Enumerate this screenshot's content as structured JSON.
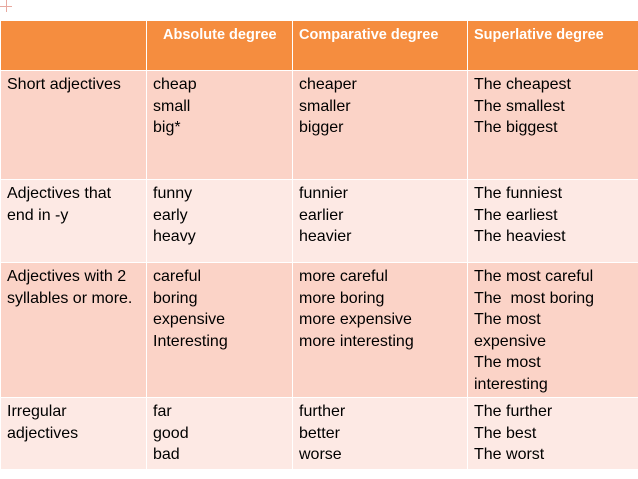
{
  "table": {
    "headers": [
      "",
      "Absolute degree",
      "Comparative degree",
      "Superlative degree"
    ],
    "rows": [
      {
        "category": "Short adjectives",
        "absolute": [
          "cheap",
          "small",
          "big*"
        ],
        "comparative": [
          "cheaper",
          "smaller",
          "bigger"
        ],
        "superlative": [
          "The cheapest",
          "The smallest",
          "The biggest"
        ]
      },
      {
        "category": "Adjectives that end in -y",
        "absolute": [
          "funny",
          "early",
          "heavy"
        ],
        "comparative": [
          "funnier",
          "earlier",
          "heavier"
        ],
        "superlative": [
          "The funniest",
          "The earliest",
          "The heaviest"
        ]
      },
      {
        "category": "Adjectives with 2 syllables or more.",
        "absolute": [
          "careful",
          "boring",
          "expensive",
          "Interesting"
        ],
        "comparative": [
          "more careful",
          "more boring",
          "more expensive",
          "more interesting"
        ],
        "superlative": [
          "The most careful",
          "The  most boring",
          "The most expensive",
          "The most interesting"
        ]
      },
      {
        "category": "Irregular adjectives",
        "absolute": [
          "far",
          "good",
          "bad"
        ],
        "comparative": [
          "further",
          "better",
          "worse"
        ],
        "superlative": [
          "The further",
          "The best",
          "The worst"
        ]
      }
    ]
  },
  "colors": {
    "header_bg": "#f58d3f",
    "row_odd_bg": "#fbd3c7",
    "row_even_bg": "#fde9e4",
    "corner_mark": "#e8a9a0"
  }
}
